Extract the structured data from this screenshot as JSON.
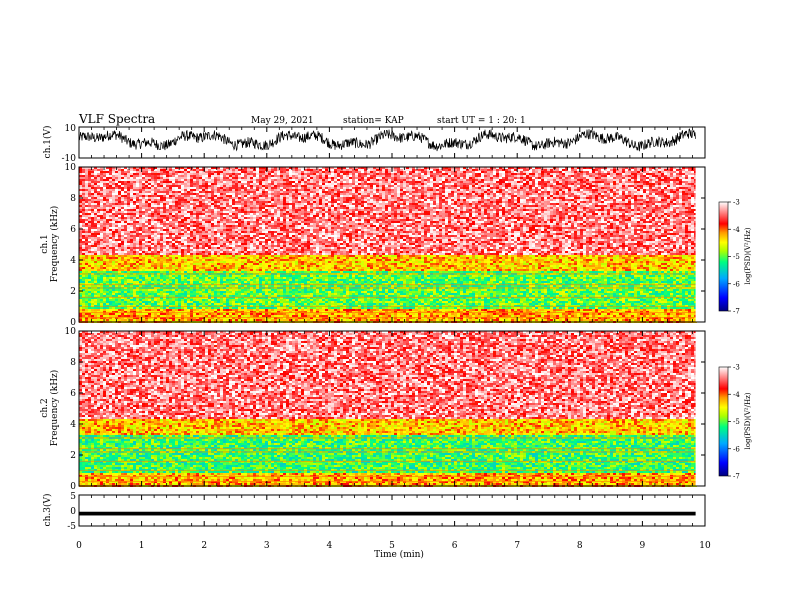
{
  "header": {
    "title": "VLF Spectra",
    "date": "May 29, 2021",
    "station": "station= KAP",
    "start": "start  UT =   1 : 20: 1"
  },
  "chart_data": [
    {
      "type": "line",
      "panel": "ch1-waveform",
      "ylabel": "ch.1(V)",
      "yticks": [
        "10",
        "-10"
      ],
      "ylim": [
        -10,
        10
      ],
      "description_values": "broadband noise waveform, amplitude mostly between about -4 and 7 V",
      "xlim": [
        0,
        9.85
      ]
    },
    {
      "type": "heatmap",
      "panel": "ch1-spectrogram",
      "ylabel": "ch.1\nFrequency  (kHz)",
      "yticks": [
        "0",
        "2",
        "4",
        "6",
        "8",
        "10"
      ],
      "ylim": [
        0,
        10
      ],
      "xlim": [
        0,
        9.85
      ],
      "bands_khz": [
        {
          "from": 0,
          "to": 0.8,
          "log_psd": -4.2
        },
        {
          "from": 0.8,
          "to": 3.3,
          "log_psd": -5.0
        },
        {
          "from": 3.3,
          "to": 4.3,
          "log_psd": -4.3
        },
        {
          "from": 4.3,
          "to": 10,
          "log_psd": -3.4
        }
      ],
      "colorbar": {
        "label": "log(PSD)(V²/Hz)",
        "ticks": [
          "-3",
          "-4",
          "-5",
          "-6",
          "-7"
        ],
        "range": [
          -7,
          -3
        ]
      }
    },
    {
      "type": "heatmap",
      "panel": "ch2-spectrogram",
      "ylabel": "ch.2\nFrequency  (kHz)",
      "yticks": [
        "0",
        "2",
        "4",
        "6",
        "8",
        "10"
      ],
      "ylim": [
        0,
        10
      ],
      "xlim": [
        0,
        9.85
      ],
      "bands_khz": [
        {
          "from": 0,
          "to": 0.8,
          "log_psd": -4.2
        },
        {
          "from": 0.8,
          "to": 3.3,
          "log_psd": -5.1
        },
        {
          "from": 3.3,
          "to": 4.3,
          "log_psd": -4.3
        },
        {
          "from": 4.3,
          "to": 10,
          "log_psd": -3.4
        }
      ],
      "colorbar": {
        "label": "log(PSD)(V²/Hz)",
        "ticks": [
          "-3",
          "-4",
          "-5",
          "-6",
          "-7"
        ],
        "range": [
          -7,
          -3
        ]
      }
    },
    {
      "type": "line",
      "panel": "ch3-waveform",
      "ylabel": "ch.3(V)",
      "yticks": [
        "5",
        "0",
        "-5"
      ],
      "ylim": [
        -5,
        5
      ],
      "band_v": [
        -1.6,
        -0.4
      ],
      "xlim": [
        0,
        9.85
      ]
    }
  ],
  "xaxis": {
    "label": "Time  (min)",
    "ticks": [
      "0",
      "1",
      "2",
      "3",
      "4",
      "5",
      "6",
      "7",
      "8",
      "9",
      "10"
    ],
    "range": [
      0,
      10
    ]
  },
  "colorscale": [
    "#000080",
    "#0000ff",
    "#00aaff",
    "#00ff80",
    "#aaff00",
    "#ffff00",
    "#ff9900",
    "#ff0000",
    "#ff6a6a",
    "#ffffff"
  ]
}
